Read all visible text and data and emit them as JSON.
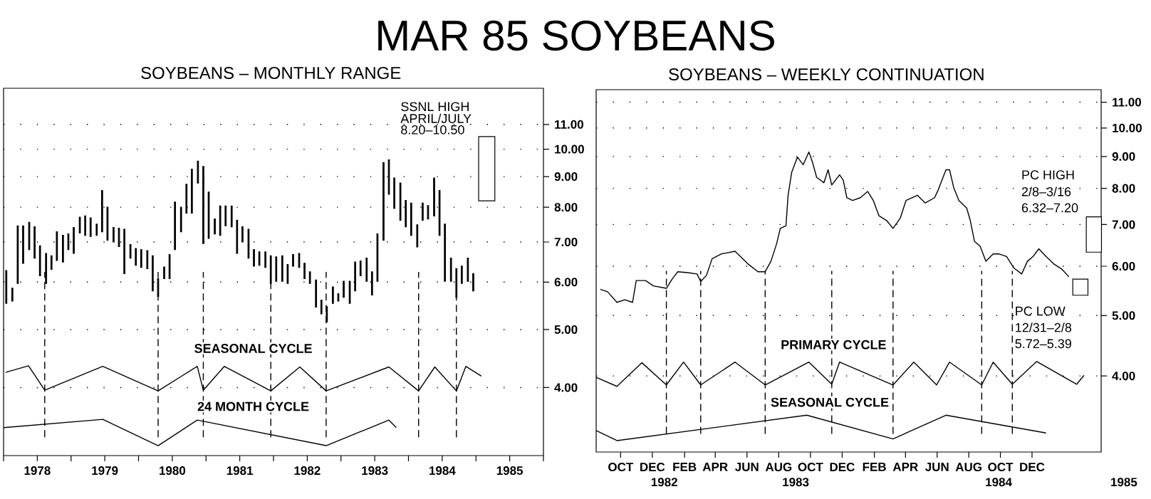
{
  "chart_data": [
    {
      "type": "other",
      "title": "MAR 85 SOYBEANS"
    },
    {
      "type": "bar",
      "title": "SOYBEANS – MONTHLY RANGE",
      "log": "y",
      "grid": "y",
      "xlim": [
        1978,
        1986
      ],
      "ylim": [
        3.08,
        12.64
      ],
      "xticks": [
        {
          "value": 1978,
          "label": null
        },
        {
          "value": 1978.5,
          "label": "1978"
        },
        {
          "value": 1979,
          "label": null
        },
        {
          "value": 1979.5,
          "label": "1979"
        },
        {
          "value": 1980,
          "label": null
        },
        {
          "value": 1980.5,
          "label": "1980"
        },
        {
          "value": 1981,
          "label": null
        },
        {
          "value": 1981.5,
          "label": "1981"
        },
        {
          "value": 1982,
          "label": null
        },
        {
          "value": 1982.5,
          "label": "1982"
        },
        {
          "value": 1983,
          "label": null
        },
        {
          "value": 1983.5,
          "label": "1983"
        },
        {
          "value": 1984,
          "label": null
        },
        {
          "value": 1984.5,
          "label": "1984"
        },
        {
          "value": 1985,
          "label": null
        },
        {
          "value": 1985.5,
          "label": "1985"
        },
        {
          "value": 1986,
          "label": null
        }
      ],
      "yticks": [
        {
          "value": 4,
          "label": "4.00"
        },
        {
          "value": 5,
          "label": "5.00"
        },
        {
          "value": 6,
          "label": "6.00"
        },
        {
          "value": 7,
          "label": "7.00"
        },
        {
          "value": 8,
          "label": "8.00"
        },
        {
          "value": 9,
          "label": "9.00"
        },
        {
          "value": 10,
          "label": "10.00"
        },
        {
          "value": 11,
          "label": "11.00"
        }
      ],
      "series": [
        {
          "type": "bar",
          "color": "#000000",
          "x": [
            1978.04,
            1978.13,
            1978.21,
            1978.29,
            1978.38,
            1978.46,
            1978.54,
            1978.63,
            1978.71,
            1978.79,
            1978.88,
            1978.96,
            1979.04,
            1979.13,
            1979.21,
            1979.29,
            1979.38,
            1979.46,
            1979.54,
            1979.63,
            1979.71,
            1979.79,
            1979.88,
            1979.96,
            1980.04,
            1980.13,
            1980.21,
            1980.29,
            1980.38,
            1980.46,
            1980.54,
            1980.63,
            1980.71,
            1980.79,
            1980.88,
            1980.96,
            1981.04,
            1981.13,
            1981.21,
            1981.29,
            1981.38,
            1981.46,
            1981.54,
            1981.63,
            1981.71,
            1981.79,
            1981.88,
            1981.96,
            1982.04,
            1982.13,
            1982.21,
            1982.29,
            1982.38,
            1982.46,
            1982.54,
            1982.63,
            1982.71,
            1982.79,
            1982.88,
            1982.96,
            1983.04,
            1983.13,
            1983.21,
            1983.29,
            1983.38,
            1983.46,
            1983.54,
            1983.63,
            1983.71,
            1983.79,
            1983.88,
            1983.96,
            1984.04,
            1984.13,
            1984.21,
            1984.29,
            1984.38,
            1984.46,
            1984.54,
            1984.63,
            1984.71,
            1984.79,
            1984.88,
            1984.96
          ],
          "base": [
            5.53,
            5.58,
            5.97,
            6.45,
            6.8,
            6.58,
            6.15,
            5.97,
            6.3,
            6.52,
            6.48,
            6.8,
            6.7,
            7.25,
            7.18,
            7.15,
            7.18,
            7.28,
            7.05,
            7.0,
            6.88,
            6.2,
            6.58,
            6.4,
            6.35,
            6.32,
            5.8,
            5.68,
            6.08,
            6.08,
            6.8,
            7.28,
            7.82,
            7.82,
            8.78,
            6.96,
            7.1,
            7.22,
            7.18,
            7.45,
            7.42,
            6.7,
            7.0,
            6.58,
            6.38,
            6.4,
            6.35,
            5.97,
            6.02,
            6.02,
            5.97,
            6.38,
            6.35,
            6.08,
            5.97,
            5.45,
            5.31,
            5.15,
            5.53,
            5.58,
            5.66,
            5.53,
            5.8,
            6.15,
            6.02,
            5.71,
            6.02,
            7.05,
            8.41,
            7.97,
            7.61,
            7.42,
            7.18,
            6.87,
            7.61,
            7.65,
            7.74,
            7.18,
            6.02,
            6.02,
            5.66,
            5.97,
            6.02,
            5.8
          ],
          "values": [
            0.74,
            0.28,
            1.48,
            1.0,
            0.75,
            0.84,
            0.75,
            0.73,
            0.34,
            0.76,
            0.7,
            0.42,
            0.7,
            0.45,
            0.56,
            0.53,
            0.32,
            1.25,
            0.95,
            0.4,
            0.5,
            1.15,
            0.35,
            0.43,
            0.45,
            0.45,
            0.84,
            0.4,
            0.28,
            0.59,
            1.36,
            0.72,
            0.92,
            1.44,
            0.77,
            2.4,
            1.38,
            0.43,
            0.86,
            0.59,
            0.62,
            0.91,
            0.42,
            0.77,
            0.42,
            0.34,
            0.39,
            0.67,
            0.59,
            0.62,
            0.45,
            0.29,
            0.35,
            0.37,
            0.27,
            0.6,
            0.29,
            0.31,
            0.36,
            0.16,
            0.36,
            0.49,
            0.68,
            0.36,
            0.56,
            0.53,
            1.2,
            2.45,
            1.19,
            0.98,
            1.17,
            0.79,
            0.95,
            0.61,
            0.52,
            0.4,
            1.21,
            1.35,
            1.48,
            0.56,
            0.66,
            0.41,
            0.56,
            0.4
          ]
        },
        {
          "type": "line",
          "name": "SEASONAL CYCLE",
          "color": "#000000",
          "x": [
            1978.03,
            1978.37,
            1978.61,
            1979.47,
            1980.29,
            1980.87,
            1980.96,
            1981.27,
            1981.96,
            1982.39,
            1982.78,
            1983.71,
            1984.15,
            1984.39,
            1984.71,
            1984.85,
            1985.08
          ],
          "values": [
            4.24,
            4.35,
            3.96,
            4.34,
            3.95,
            4.34,
            3.96,
            4.34,
            3.95,
            4.33,
            3.95,
            4.33,
            3.95,
            4.33,
            3.95,
            4.34,
            4.18
          ]
        },
        {
          "type": "line",
          "name": "24 MONTH CYCLE",
          "color": "#000000",
          "x": [
            1978.0,
            1979.47,
            1980.29,
            1980.87,
            1982.78,
            1983.71,
            1983.82
          ],
          "values": [
            3.43,
            3.54,
            3.2,
            3.53,
            3.2,
            3.53,
            3.43
          ]
        },
        {
          "type": "bar",
          "color": "#000000",
          "x": [
            1985.16
          ],
          "base": [
            8.2
          ],
          "values": [
            2.3
          ]
        }
      ],
      "ref_lines": [
        {
          "axis": "x",
          "value": 1978.61,
          "line_style": "dashed"
        },
        {
          "axis": "x",
          "value": 1980.29,
          "line_style": "dashed"
        },
        {
          "axis": "x",
          "value": 1980.96,
          "line_style": "dashed"
        },
        {
          "axis": "x",
          "value": 1981.96,
          "line_style": "dashed"
        },
        {
          "axis": "x",
          "value": 1982.78,
          "line_style": "dashed"
        },
        {
          "axis": "x",
          "value": 1984.15,
          "line_style": "dashed"
        },
        {
          "axis": "x",
          "value": 1984.71,
          "line_style": "dashed"
        }
      ],
      "annotations": [
        "SSNL HIGH",
        "APRIL/JULY",
        "8.20–10.50"
      ]
    },
    {
      "type": "line",
      "title": "SOYBEANS – WEEKLY CONTINUATION",
      "log": "y",
      "grid": "y",
      "xlim": [
        "1982-08-15",
        "1985-04-13"
      ],
      "ylim": [
        3.02,
        11.52
      ],
      "xticks": [
        {
          "value": "1982-10-01",
          "label": "OCT"
        },
        {
          "value": "1982-12-01",
          "label": "DEC"
        },
        {
          "value": "1983-02-01",
          "label": "FEB"
        },
        {
          "value": "1983-04-01",
          "label": "APR"
        },
        {
          "value": "1983-06-01",
          "label": "JUN"
        },
        {
          "value": "1983-08-01",
          "label": "AUG"
        },
        {
          "value": "1983-10-01",
          "label": "OCT"
        },
        {
          "value": "1983-12-01",
          "label": "DEC"
        },
        {
          "value": "1984-02-01",
          "label": "FEB"
        },
        {
          "value": "1984-04-01",
          "label": "APR"
        },
        {
          "value": "1984-06-01",
          "label": "JUN"
        },
        {
          "value": "1984-08-01",
          "label": "AUG"
        },
        {
          "value": "1984-10-01",
          "label": "OCT"
        },
        {
          "value": "1984-12-01",
          "label": "DEC"
        }
      ],
      "yticks": [
        {
          "value": 4,
          "label": "4.00"
        },
        {
          "value": 5,
          "label": "5.00"
        },
        {
          "value": 6,
          "label": "6.00"
        },
        {
          "value": 7,
          "label": "7.00"
        },
        {
          "value": 8,
          "label": "8.00"
        },
        {
          "value": 9,
          "label": "9.00"
        },
        {
          "value": 10,
          "label": "10.00"
        },
        {
          "value": 11,
          "label": "11.00"
        }
      ],
      "series": [
        {
          "type": "line",
          "color": "#000000",
          "x": [
            "1982-08-23",
            "1982-09-06",
            "1982-09-24",
            "1982-10-09",
            "1982-10-24",
            "1982-10-31",
            "1982-11-18",
            "1982-12-03",
            "1982-12-28",
            "1983-01-08",
            "1983-01-19",
            "1983-02-07",
            "1983-02-25",
            "1983-03-04",
            "1983-03-15",
            "1983-03-26",
            "1983-04-13",
            "1983-05-09",
            "1983-06-03",
            "1983-06-22",
            "1983-07-06",
            "1983-07-17",
            "1983-07-28",
            "1983-08-04",
            "1983-08-15",
            "1983-08-19",
            "1983-08-26",
            "1983-09-06",
            "1983-09-17",
            "1983-09-28",
            "1983-10-05",
            "1983-10-13",
            "1983-10-27",
            "1983-11-04",
            "1983-11-11",
            "1983-11-26",
            "1983-12-03",
            "1983-12-10",
            "1983-12-21",
            "1984-01-05",
            "1984-01-19",
            "1984-01-30",
            "1984-02-10",
            "1984-02-25",
            "1984-03-08",
            "1984-03-22",
            "1984-04-02",
            "1984-04-24",
            "1984-05-09",
            "1984-05-27",
            "1984-06-03",
            "1984-06-18",
            "1984-06-25",
            "1984-07-03",
            "1984-07-13",
            "1984-07-28",
            "1984-08-04",
            "1984-08-12",
            "1984-08-23",
            "1984-09-03",
            "1984-09-17",
            "1984-09-28",
            "1984-10-13",
            "1984-10-27",
            "1984-11-11",
            "1984-11-22",
            "1984-12-03",
            "1984-12-14",
            "1984-12-28",
            "1985-01-12",
            "1985-01-27",
            "1985-02-10"
          ],
          "values": [
            5.51,
            5.46,
            5.25,
            5.3,
            5.25,
            5.69,
            5.69,
            5.58,
            5.53,
            5.72,
            5.88,
            5.86,
            5.83,
            5.67,
            5.8,
            6.17,
            6.28,
            6.34,
            6.05,
            5.88,
            5.88,
            6.11,
            6.52,
            6.9,
            6.97,
            7.8,
            8.49,
            8.98,
            8.73,
            9.15,
            8.81,
            8.33,
            8.17,
            8.57,
            8.1,
            8.41,
            8.25,
            7.73,
            7.65,
            7.73,
            7.91,
            7.65,
            7.23,
            7.1,
            6.9,
            7.17,
            7.65,
            7.8,
            7.58,
            7.73,
            7.95,
            8.57,
            8.57,
            8.02,
            7.65,
            7.44,
            7.1,
            6.58,
            6.46,
            6.11,
            6.28,
            6.28,
            6.22,
            5.96,
            5.83,
            6.11,
            6.22,
            6.4,
            6.22,
            6.05,
            5.94,
            5.77
          ]
        },
        {
          "type": "bar",
          "color": "#000000",
          "x": [
            "1985-03-04"
          ],
          "base": [
            5.39
          ],
          "values": [
            0.33
          ]
        },
        {
          "type": "bar",
          "color": "#000000",
          "x": [
            "1985-03-30"
          ],
          "base": [
            6.32
          ],
          "values": [
            0.88
          ]
        },
        {
          "type": "line",
          "name": "PRIMARY CYCLE",
          "color": "#000000",
          "x": [
            "1982-08-15",
            "1982-09-24",
            "1982-11-11",
            "1982-12-28",
            "1983-01-30",
            "1983-03-04",
            "1983-05-09",
            "1983-07-06",
            "1983-09-28",
            "1983-11-11",
            "1983-11-26",
            "1984-03-08",
            "1984-04-17",
            "1984-05-31",
            "1984-06-25",
            "1984-08-26",
            "1984-09-17",
            "1984-10-24",
            "1984-12-10",
            "1985-02-25",
            "1985-03-11"
          ],
          "values": [
            3.98,
            3.85,
            4.2,
            3.87,
            4.21,
            3.87,
            4.21,
            3.87,
            4.21,
            3.88,
            4.21,
            3.87,
            4.21,
            3.87,
            4.21,
            3.87,
            4.21,
            3.88,
            4.22,
            3.88,
            4.01
          ]
        },
        {
          "type": "line",
          "name": "SEASONAL CYCLE",
          "color": "#000000",
          "x": [
            "1982-08-15",
            "1982-09-24",
            "1983-09-24",
            "1984-03-08",
            "1984-06-18",
            "1984-12-28"
          ],
          "values": [
            3.27,
            3.15,
            3.46,
            3.17,
            3.46,
            3.24
          ]
        }
      ],
      "ref_lines": [
        {
          "axis": "x",
          "value": "1982-12-28",
          "line_style": "dashed"
        },
        {
          "axis": "x",
          "value": "1983-03-04",
          "line_style": "dashed"
        },
        {
          "axis": "x",
          "value": "1983-07-06",
          "line_style": "dashed"
        },
        {
          "axis": "x",
          "value": "1983-11-11",
          "line_style": "dashed"
        },
        {
          "axis": "x",
          "value": "1984-03-08",
          "line_style": "dashed"
        },
        {
          "axis": "x",
          "value": "1984-08-26",
          "line_style": "dashed"
        },
        {
          "axis": "x",
          "value": "1984-10-24",
          "line_style": "dashed"
        }
      ],
      "annotations": [
        "PC HIGH",
        "2/8–3/16",
        "6.32–7.20",
        "PC LOW",
        "12/31–2/8",
        "5.72–5.39",
        "1982",
        "1983",
        "1984",
        "1985"
      ]
    }
  ]
}
